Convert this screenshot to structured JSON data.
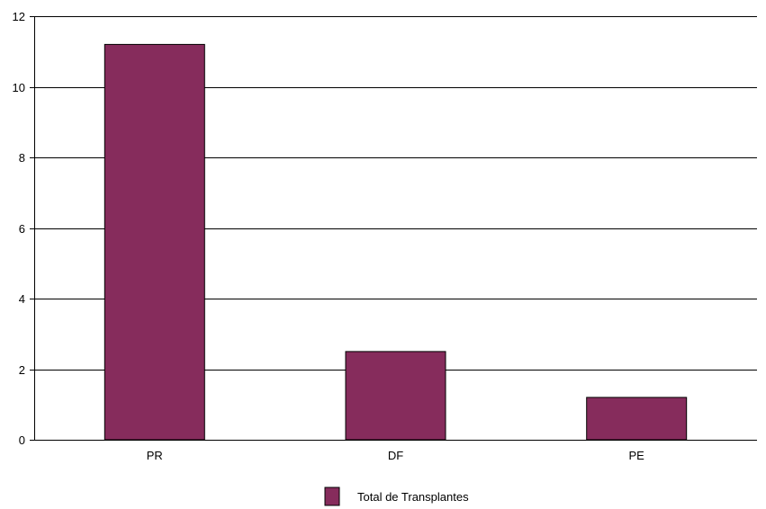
{
  "chart_data": {
    "type": "bar",
    "categories": [
      "PR",
      "DF",
      "PE"
    ],
    "series": [
      {
        "name": "Total de Transplantes",
        "values": [
          11.2,
          2.5,
          1.2
        ],
        "color": "#862c5c"
      }
    ],
    "ylim": [
      0,
      12
    ],
    "yticks": [
      "0",
      "2",
      "4",
      "6",
      "8",
      "10",
      "12"
    ],
    "grid": true,
    "legend_position": "bottom-center",
    "title": "",
    "xlabel": "",
    "ylabel": ""
  }
}
